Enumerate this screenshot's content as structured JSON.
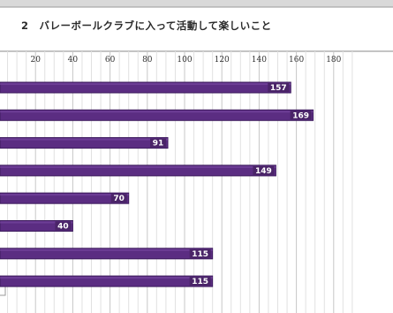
{
  "chart_data": {
    "type": "bar",
    "orientation": "horizontal",
    "title": "2　バレーボールクラブに入って活動して楽しいこと",
    "xlim": [
      0,
      180
    ],
    "ticks": [
      20,
      40,
      60,
      80,
      100,
      120,
      140,
      160,
      180
    ],
    "tick_labels": [
      "20",
      "40",
      "60",
      "80",
      "100",
      "120",
      "140",
      "160",
      "180"
    ],
    "values": [
      157,
      169,
      91,
      149,
      70,
      40,
      115,
      115
    ],
    "value_labels": [
      "157",
      "169",
      "91",
      "149",
      "70",
      "40",
      "115",
      "115"
    ],
    "grid": true,
    "colors": {
      "bar": "#5b2d82",
      "bar_edge": "#3e1c5e",
      "bar_highlight": "#7a4aa3",
      "label_box": "#4a2468",
      "grid": "#c7c7c7",
      "grid_minor": "#e1e1e1",
      "frame": "#8a8a8a"
    }
  }
}
